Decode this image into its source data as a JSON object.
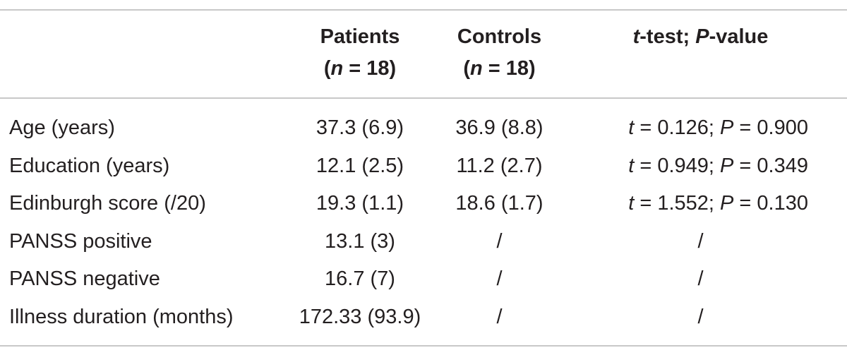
{
  "table": {
    "headers": {
      "patients": {
        "line1": "Patients",
        "line2_prefix": "(",
        "line2_var": "n",
        "line2_suffix": " = 18)"
      },
      "controls": {
        "line1": "Controls",
        "line2_prefix": "(",
        "line2_var": "n",
        "line2_suffix": " = 18)"
      },
      "ttest": {
        "var1": "t",
        "mid": "-test; ",
        "var2": "P",
        "end": "-value"
      }
    },
    "rows": [
      {
        "label": "Age (years)",
        "patients": "37.3 (6.9)",
        "controls": "36.9 (8.8)",
        "t_var": "t",
        "t_val": " = 0.126; ",
        "p_var": "P",
        "p_val": " = 0.900"
      },
      {
        "label": "Education (years)",
        "patients": "12.1 (2.5)",
        "controls": "11.2 (2.7)",
        "t_var": "t",
        "t_val": " = 0.949; ",
        "p_var": "P",
        "p_val": " = 0.349"
      },
      {
        "label": "Edinburgh score (/20)",
        "patients": "19.3 (1.1)",
        "controls": "18.6 (1.7)",
        "t_var": "t",
        "t_val": " = 1.552; ",
        "p_var": "P",
        "p_val": " = 0.130"
      },
      {
        "label": "PANSS positive",
        "patients": "13.1 (3)",
        "controls": "/",
        "ttest": "/"
      },
      {
        "label": "PANSS negative",
        "patients": "16.7 (7)",
        "controls": "/",
        "ttest": "/"
      },
      {
        "label": "Illness duration (months)",
        "patients": "172.33 (93.9)",
        "controls": "/",
        "ttest": "/"
      }
    ]
  }
}
